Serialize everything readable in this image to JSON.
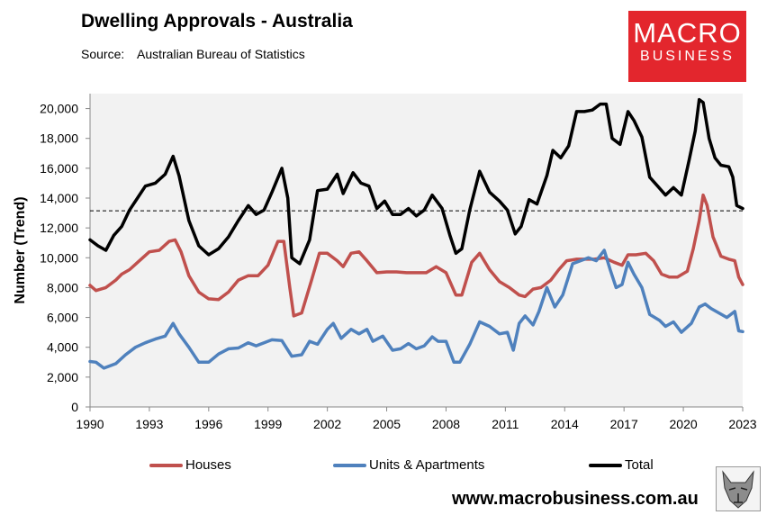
{
  "header": {
    "title": "Dwelling Approvals - Australia",
    "source_label": "Source:",
    "source_value": "Australian Bureau of Statistics"
  },
  "logo": {
    "line1": "MACRO",
    "line2": "BUSINESS"
  },
  "footer": {
    "url": "www.macrobusiness.com.au"
  },
  "colors": {
    "houses": "#c0504d",
    "units": "#4f81bd",
    "total": "#000000",
    "plot_bg": "#f2f2f2"
  },
  "chart_data": {
    "type": "line",
    "title": "Dwelling Approvals - Australia",
    "xlabel": "",
    "ylabel": "Number (Trend)",
    "xlim": [
      1990,
      2023
    ],
    "ylim": [
      0,
      21000
    ],
    "x_ticks": [
      1990,
      1993,
      1996,
      1999,
      2002,
      2005,
      2008,
      2011,
      2014,
      2017,
      2020,
      2023
    ],
    "y_ticks": [
      0,
      2000,
      4000,
      6000,
      8000,
      10000,
      12000,
      14000,
      16000,
      18000,
      20000
    ],
    "y_tick_labels": [
      "0",
      "2,000",
      "4,000",
      "6,000",
      "8,000",
      "10,000",
      "12,000",
      "14,000",
      "16,000",
      "18,000",
      "20,000"
    ],
    "reference_line": {
      "y": 13150,
      "style": "dashed",
      "label": ""
    },
    "legend_position": "bottom",
    "series": [
      {
        "name": "Houses",
        "color": "#c0504d",
        "points": [
          [
            1990,
            8150
          ],
          [
            1990.3,
            7800
          ],
          [
            1990.8,
            8000
          ],
          [
            1991.3,
            8500
          ],
          [
            1991.6,
            8900
          ],
          [
            1992,
            9200
          ],
          [
            1992.5,
            9800
          ],
          [
            1993,
            10400
          ],
          [
            1993.5,
            10500
          ],
          [
            1994,
            11100
          ],
          [
            1994.3,
            11200
          ],
          [
            1994.6,
            10400
          ],
          [
            1995,
            8800
          ],
          [
            1995.5,
            7700
          ],
          [
            1996,
            7250
          ],
          [
            1996.5,
            7200
          ],
          [
            1997,
            7700
          ],
          [
            1997.5,
            8500
          ],
          [
            1998,
            8800
          ],
          [
            1998.5,
            8800
          ],
          [
            1999,
            9500
          ],
          [
            1999.5,
            11100
          ],
          [
            1999.8,
            11100
          ],
          [
            2000.1,
            8000
          ],
          [
            2000.3,
            6100
          ],
          [
            2000.7,
            6300
          ],
          [
            2001.2,
            8500
          ],
          [
            2001.6,
            10300
          ],
          [
            2002,
            10300
          ],
          [
            2002.5,
            9800
          ],
          [
            2002.8,
            9400
          ],
          [
            2003.2,
            10300
          ],
          [
            2003.6,
            10400
          ],
          [
            2004,
            9800
          ],
          [
            2004.5,
            9000
          ],
          [
            2005,
            9050
          ],
          [
            2005.5,
            9050
          ],
          [
            2006,
            9000
          ],
          [
            2006.5,
            9000
          ],
          [
            2007,
            9000
          ],
          [
            2007.5,
            9400
          ],
          [
            2008,
            9000
          ],
          [
            2008.5,
            7500
          ],
          [
            2008.8,
            7500
          ],
          [
            2009.3,
            9700
          ],
          [
            2009.7,
            10300
          ],
          [
            2010.2,
            9200
          ],
          [
            2010.7,
            8400
          ],
          [
            2011.2,
            8000
          ],
          [
            2011.7,
            7500
          ],
          [
            2012,
            7400
          ],
          [
            2012.4,
            7900
          ],
          [
            2012.8,
            8000
          ],
          [
            2013.3,
            8500
          ],
          [
            2013.7,
            9200
          ],
          [
            2014.1,
            9800
          ],
          [
            2014.6,
            9900
          ],
          [
            2015,
            9900
          ],
          [
            2015.5,
            9900
          ],
          [
            2016,
            10000
          ],
          [
            2016.5,
            9700
          ],
          [
            2016.9,
            9500
          ],
          [
            2017.2,
            10200
          ],
          [
            2017.6,
            10200
          ],
          [
            2018.1,
            10300
          ],
          [
            2018.5,
            9800
          ],
          [
            2018.9,
            8900
          ],
          [
            2019.3,
            8700
          ],
          [
            2019.7,
            8700
          ],
          [
            2020.2,
            9100
          ],
          [
            2020.5,
            10600
          ],
          [
            2020.8,
            12500
          ],
          [
            2021,
            14200
          ],
          [
            2021.2,
            13500
          ],
          [
            2021.5,
            11400
          ],
          [
            2021.9,
            10100
          ],
          [
            2022.3,
            9900
          ],
          [
            2022.6,
            9800
          ],
          [
            2022.8,
            8700
          ],
          [
            2023,
            8200
          ]
        ]
      },
      {
        "name": "Units & Apartments",
        "color": "#4f81bd",
        "points": [
          [
            1990,
            3050
          ],
          [
            1990.3,
            3000
          ],
          [
            1990.7,
            2600
          ],
          [
            1991.3,
            2900
          ],
          [
            1991.8,
            3500
          ],
          [
            1992.3,
            4000
          ],
          [
            1992.8,
            4300
          ],
          [
            1993.3,
            4550
          ],
          [
            1993.8,
            4750
          ],
          [
            1994.2,
            5600
          ],
          [
            1994.5,
            4900
          ],
          [
            1995,
            4000
          ],
          [
            1995.5,
            3000
          ],
          [
            1996,
            3000
          ],
          [
            1996.5,
            3550
          ],
          [
            1997,
            3900
          ],
          [
            1997.5,
            3950
          ],
          [
            1998,
            4300
          ],
          [
            1998.4,
            4100
          ],
          [
            1998.8,
            4300
          ],
          [
            1999.2,
            4500
          ],
          [
            1999.7,
            4450
          ],
          [
            2000.2,
            3400
          ],
          [
            2000.7,
            3500
          ],
          [
            2001.1,
            4400
          ],
          [
            2001.5,
            4200
          ],
          [
            2002,
            5200
          ],
          [
            2002.3,
            5600
          ],
          [
            2002.7,
            4600
          ],
          [
            2003.2,
            5200
          ],
          [
            2003.6,
            4900
          ],
          [
            2004,
            5200
          ],
          [
            2004.3,
            4400
          ],
          [
            2004.8,
            4750
          ],
          [
            2005.3,
            3800
          ],
          [
            2005.7,
            3900
          ],
          [
            2006.1,
            4250
          ],
          [
            2006.5,
            3900
          ],
          [
            2006.9,
            4100
          ],
          [
            2007.3,
            4700
          ],
          [
            2007.6,
            4400
          ],
          [
            2008,
            4400
          ],
          [
            2008.4,
            3000
          ],
          [
            2008.7,
            3000
          ],
          [
            2009.2,
            4200
          ],
          [
            2009.7,
            5700
          ],
          [
            2010.2,
            5400
          ],
          [
            2010.7,
            4900
          ],
          [
            2011.1,
            5000
          ],
          [
            2011.4,
            3800
          ],
          [
            2011.7,
            5600
          ],
          [
            2012,
            6100
          ],
          [
            2012.4,
            5500
          ],
          [
            2012.7,
            6400
          ],
          [
            2013.1,
            8000
          ],
          [
            2013.5,
            6700
          ],
          [
            2013.9,
            7500
          ],
          [
            2014.4,
            9600
          ],
          [
            2014.8,
            9800
          ],
          [
            2015.2,
            10000
          ],
          [
            2015.6,
            9800
          ],
          [
            2016,
            10500
          ],
          [
            2016.3,
            9200
          ],
          [
            2016.6,
            8000
          ],
          [
            2016.9,
            8200
          ],
          [
            2017.2,
            9700
          ],
          [
            2017.5,
            8900
          ],
          [
            2017.9,
            8000
          ],
          [
            2018.3,
            6200
          ],
          [
            2018.8,
            5800
          ],
          [
            2019.1,
            5400
          ],
          [
            2019.5,
            5700
          ],
          [
            2019.9,
            5000
          ],
          [
            2020.4,
            5600
          ],
          [
            2020.8,
            6700
          ],
          [
            2021.1,
            6900
          ],
          [
            2021.4,
            6600
          ],
          [
            2021.8,
            6300
          ],
          [
            2022.2,
            6000
          ],
          [
            2022.6,
            6400
          ],
          [
            2022.8,
            5100
          ],
          [
            2023,
            5050
          ]
        ]
      },
      {
        "name": "Total",
        "color": "#000000",
        "points": [
          [
            1990,
            11200
          ],
          [
            1990.4,
            10800
          ],
          [
            1990.8,
            10500
          ],
          [
            1991.2,
            11500
          ],
          [
            1991.6,
            12100
          ],
          [
            1992,
            13200
          ],
          [
            1992.4,
            14000
          ],
          [
            1992.8,
            14800
          ],
          [
            1993.3,
            15000
          ],
          [
            1993.8,
            15600
          ],
          [
            1994.2,
            16800
          ],
          [
            1994.5,
            15500
          ],
          [
            1995,
            12500
          ],
          [
            1995.5,
            10800
          ],
          [
            1996,
            10200
          ],
          [
            1996.5,
            10600
          ],
          [
            1997,
            11400
          ],
          [
            1997.5,
            12500
          ],
          [
            1998,
            13500
          ],
          [
            1998.4,
            12900
          ],
          [
            1998.8,
            13200
          ],
          [
            1999.2,
            14400
          ],
          [
            1999.7,
            16000
          ],
          [
            2000,
            14000
          ],
          [
            2000.2,
            10000
          ],
          [
            2000.6,
            9600
          ],
          [
            2001.1,
            11200
          ],
          [
            2001.5,
            14500
          ],
          [
            2002,
            14600
          ],
          [
            2002.5,
            15600
          ],
          [
            2002.8,
            14300
          ],
          [
            2003.3,
            15700
          ],
          [
            2003.7,
            15000
          ],
          [
            2004.1,
            14800
          ],
          [
            2004.5,
            13300
          ],
          [
            2004.9,
            13800
          ],
          [
            2005.3,
            12900
          ],
          [
            2005.7,
            12900
          ],
          [
            2006.1,
            13300
          ],
          [
            2006.5,
            12800
          ],
          [
            2006.9,
            13200
          ],
          [
            2007.3,
            14200
          ],
          [
            2007.8,
            13300
          ],
          [
            2008.2,
            11500
          ],
          [
            2008.5,
            10300
          ],
          [
            2008.8,
            10600
          ],
          [
            2009.2,
            13200
          ],
          [
            2009.7,
            15800
          ],
          [
            2010.2,
            14400
          ],
          [
            2010.7,
            13800
          ],
          [
            2011.1,
            13200
          ],
          [
            2011.5,
            11600
          ],
          [
            2011.8,
            12100
          ],
          [
            2012.2,
            13900
          ],
          [
            2012.6,
            13600
          ],
          [
            2013.1,
            15500
          ],
          [
            2013.4,
            17200
          ],
          [
            2013.8,
            16700
          ],
          [
            2014.2,
            17500
          ],
          [
            2014.6,
            19800
          ],
          [
            2015,
            19800
          ],
          [
            2015.4,
            19900
          ],
          [
            2015.8,
            20300
          ],
          [
            2016.1,
            20300
          ],
          [
            2016.4,
            18000
          ],
          [
            2016.8,
            17600
          ],
          [
            2017.2,
            19800
          ],
          [
            2017.5,
            19200
          ],
          [
            2017.9,
            18100
          ],
          [
            2018.3,
            15400
          ],
          [
            2018.7,
            14800
          ],
          [
            2019.1,
            14200
          ],
          [
            2019.5,
            14700
          ],
          [
            2019.9,
            14200
          ],
          [
            2020.3,
            16600
          ],
          [
            2020.6,
            18500
          ],
          [
            2020.8,
            20600
          ],
          [
            2021,
            20400
          ],
          [
            2021.3,
            18000
          ],
          [
            2021.6,
            16700
          ],
          [
            2021.9,
            16200
          ],
          [
            2022.3,
            16100
          ],
          [
            2022.5,
            15400
          ],
          [
            2022.7,
            13500
          ],
          [
            2023,
            13300
          ]
        ]
      }
    ]
  }
}
